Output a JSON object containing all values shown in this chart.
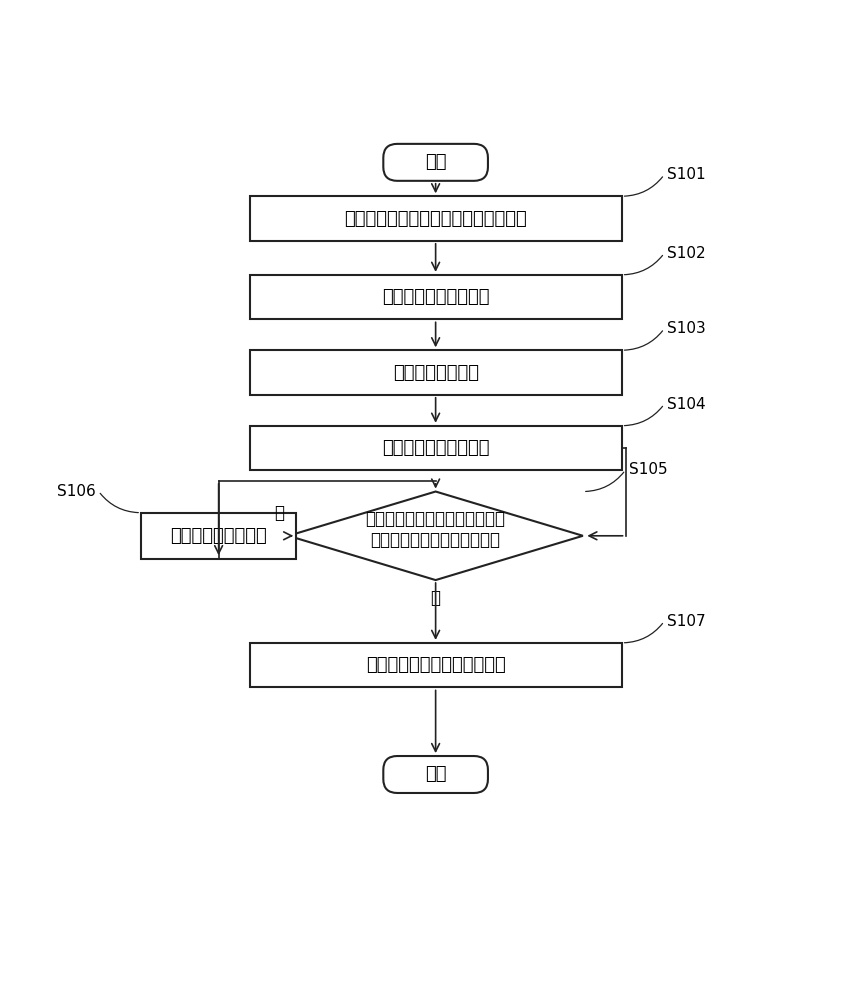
{
  "bg_color": "#ffffff",
  "line_color": "#222222",
  "text_color": "#000000",
  "start_end_text": [
    "开始",
    "结束"
  ],
  "box_labels": [
    "测量触控振动器两端的电压值与电流值",
    "计算得到第一阻抗曲线",
    "选定初始模型参数",
    "计算得到第二阻抗曲线",
    "判断第二阻抗曲线与第一阻抗曲\n线的相似度是否大于预设门限",
    "调整预设模型参数值",
    "获取触控振动器的模型参数值"
  ],
  "step_labels": [
    "S101",
    "S102",
    "S103",
    "S104",
    "S105",
    "S106",
    "S107"
  ],
  "yes_label": "是",
  "no_label": "否",
  "font_size": 13,
  "label_font_size": 11
}
